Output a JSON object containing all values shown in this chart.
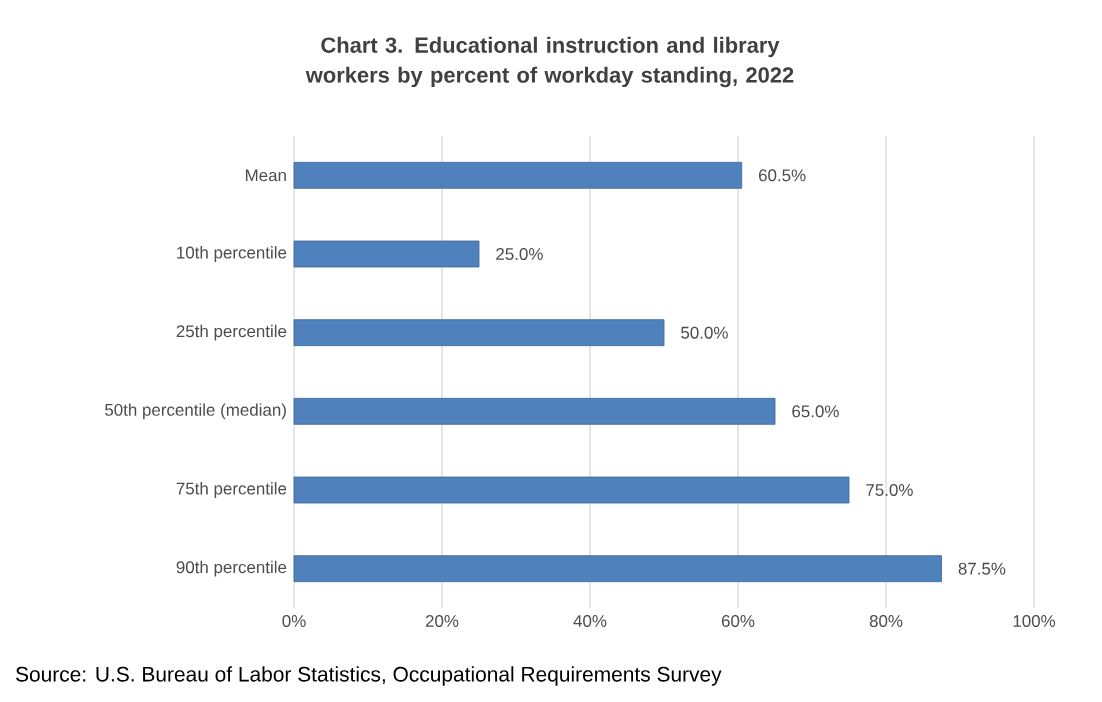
{
  "chart_data": {
    "type": "bar",
    "orientation": "horizontal",
    "title": "Chart 3. Educational instruction and library workers by percent of workday standing, 2022",
    "categories": [
      "Mean",
      "10th percentile",
      "25th percentile",
      "50th percentile (median)",
      "75th percentile",
      "90th percentile"
    ],
    "values": [
      60.5,
      25.0,
      50.0,
      65.0,
      75.0,
      87.5
    ],
    "value_labels": [
      "60.5%",
      "25.0%",
      "50.0%",
      "65.0%",
      "75.0%",
      "87.5%"
    ],
    "color": "#4f81bd",
    "xlim": [
      0,
      100
    ],
    "xticks": [
      {
        "value": 0,
        "label": "0%"
      },
      {
        "value": 20,
        "label": "20%"
      },
      {
        "value": 40,
        "label": "40%"
      },
      {
        "value": 60,
        "label": "60%"
      },
      {
        "value": 80,
        "label": "80%"
      },
      {
        "value": 100,
        "label": "100%"
      }
    ],
    "grid": "x",
    "annotations": [
      "Source: U.S. Bureau of Labor Statistics, Occupational Requirements Survey"
    ]
  }
}
